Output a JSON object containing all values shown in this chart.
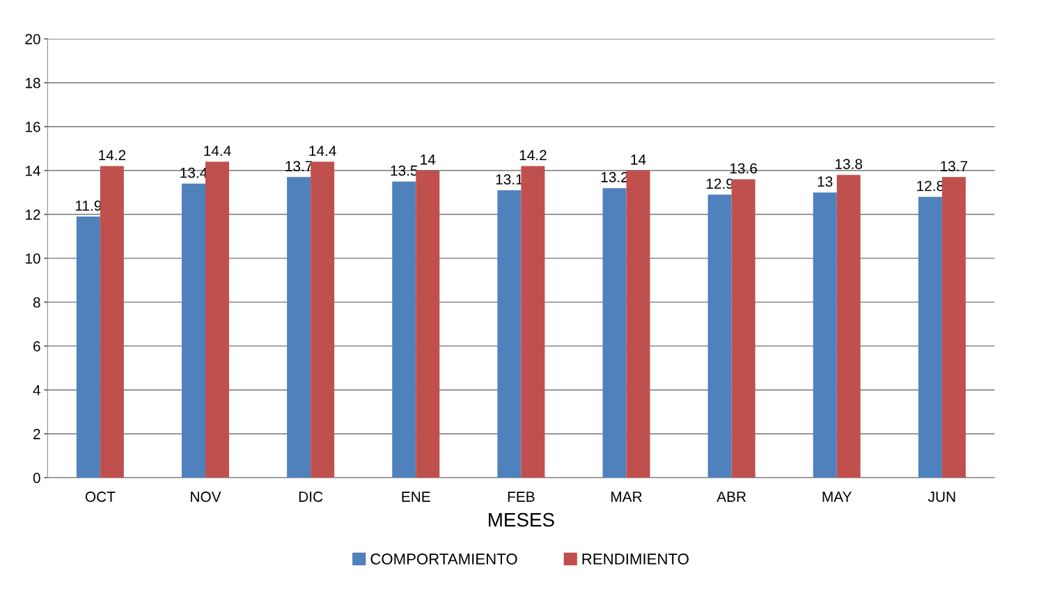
{
  "chart_data": {
    "type": "bar",
    "xlabel": "MESES",
    "categories": [
      "OCT",
      "NOV",
      "DIC",
      "ENE",
      "FEB",
      "MAR",
      "ABR",
      "MAY",
      "JUN"
    ],
    "series": [
      {
        "name": "COMPORTAMIENTO",
        "color": "#4f81bd",
        "values": [
          11.9,
          13.4,
          13.7,
          13.5,
          13.1,
          13.2,
          12.9,
          13,
          12.8
        ]
      },
      {
        "name": "RENDIMIENTO",
        "color": "#c0504d",
        "values": [
          14.2,
          14.4,
          14.4,
          14,
          14.2,
          14,
          13.6,
          13.8,
          13.7
        ]
      }
    ],
    "ylim": [
      0,
      20
    ],
    "yticks": [
      0,
      2,
      4,
      6,
      8,
      10,
      12,
      14,
      16,
      18,
      20
    ],
    "grid": "y",
    "legend": "bottom",
    "data_labels": true
  }
}
